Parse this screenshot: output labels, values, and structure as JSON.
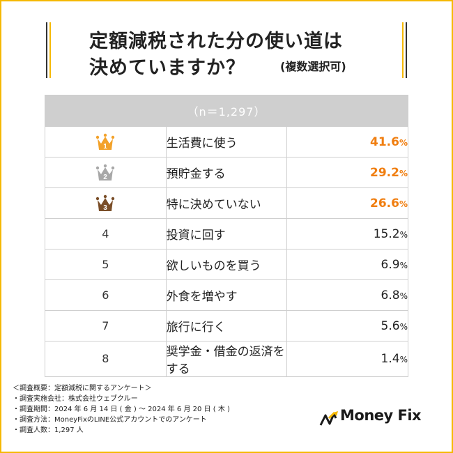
{
  "title": {
    "line1": "定額減税された分の使い道は",
    "line2": "決めていますか？",
    "note": "(複数選択可)"
  },
  "chart_data": {
    "type": "table",
    "header": "（n＝1,297）",
    "unit": "%",
    "rows": [
      {
        "rank": "1",
        "label": "生活費に使う",
        "value": "41.6",
        "top": true,
        "crown_color": "#f3a22a"
      },
      {
        "rank": "2",
        "label": "預貯金する",
        "value": "29.2",
        "top": true,
        "crown_color": "#a8a8a8"
      },
      {
        "rank": "3",
        "label": "特に決めていない",
        "value": "26.6",
        "top": true,
        "crown_color": "#7a4e28"
      },
      {
        "rank": "4",
        "label": "投資に回す",
        "value": "15.2",
        "top": false
      },
      {
        "rank": "5",
        "label": "欲しいものを買う",
        "value": "6.9",
        "top": false
      },
      {
        "rank": "6",
        "label": "外食を増やす",
        "value": "6.8",
        "top": false
      },
      {
        "rank": "7",
        "label": "旅行に行く",
        "value": "5.6",
        "top": false
      },
      {
        "rank": "8",
        "label": "奨学金・借金の返済をする",
        "value": "1.4",
        "top": false
      }
    ]
  },
  "footnotes": {
    "overview": "＜調査概要：定額減税に関するアンケート＞",
    "company": "・調査実施会社：株式会社ウェブクルー",
    "period": "・調査期間：2024 年 6 月 14 日 ( 金 ) 〜 2024 年 6 月 20 日 ( 木 )",
    "method": "・調査方法：MoneyFixのLINE公式アカウントでのアンケート",
    "respondents": "・調査人数：1,297 人"
  },
  "logo": {
    "text": "Money Fix"
  },
  "colors": {
    "frame": "#f5b800",
    "accent": "#f07e10",
    "header_bg": "#cfcfcf"
  }
}
